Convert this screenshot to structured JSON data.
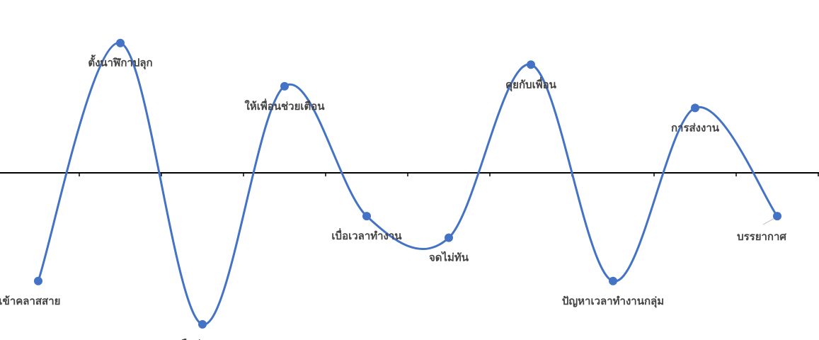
{
  "chart_data": {
    "type": "line",
    "smooth": true,
    "title": "",
    "xlabel": "",
    "ylabel": "",
    "ylim": [
      -3.5,
      3.5
    ],
    "grid": false,
    "legend": "none",
    "colors": {
      "line": "#4472C4",
      "marker": "#4472C4",
      "axis": "#000000",
      "label": "#444444"
    },
    "categories": [
      "ตื่นสาย/เข้าคลาสสาย",
      "ตั้งนาฬิกาปลุก",
      "ลืมส่งงาน",
      "ให้เพื่อนช่วยเตือน",
      "เบื่อเวลาทำงาน",
      "จดไม่ทัน",
      "คุยกับเพื่อน",
      "ปัญหาเวลาทำงานกลุ่ม",
      "การส่งงาน",
      "บรรยากาศ"
    ],
    "values": [
      -2.5,
      3,
      -3.5,
      2,
      -1,
      -1.5,
      2.5,
      -2.5,
      1.5,
      -1
    ]
  }
}
